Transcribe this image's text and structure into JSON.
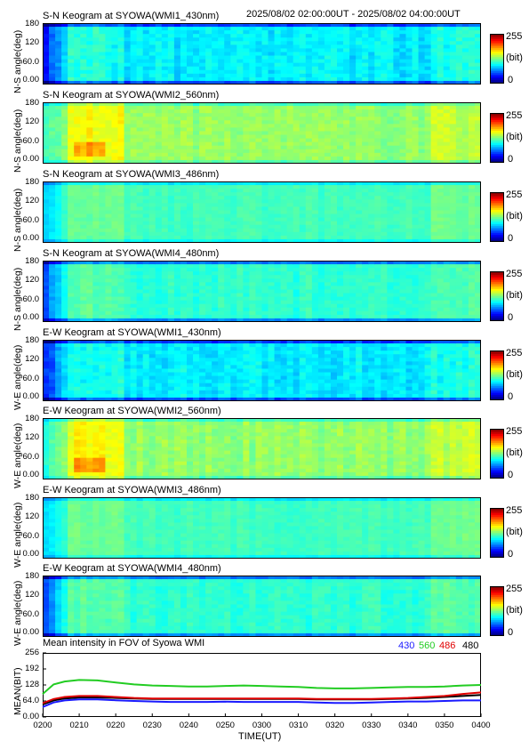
{
  "header": {
    "time_range": "2025/08/02 02:00:00UT - 2025/08/02 04:00:00UT"
  },
  "colorbar": {
    "max_label": "255",
    "unit_label": "(bit)",
    "min_label": "0"
  },
  "colors": {
    "series_430": "#1a1aff",
    "series_560": "#22cc22",
    "series_486": "#e00000",
    "series_480": "#000000"
  },
  "keograms": [
    {
      "title": "S-N Keogram at SYOWA(WMI1_430nm)",
      "ylabel": "N-S angle(deg)",
      "yticks": [
        "180",
        "120",
        "60.0",
        "0.00"
      ],
      "palette": "blue"
    },
    {
      "title": "S-N Keogram at SYOWA(WMI2_560nm)",
      "ylabel": "N-S angle(deg)",
      "yticks": [
        "180",
        "120",
        "60.0",
        "0.00"
      ],
      "palette": "green"
    },
    {
      "title": "S-N Keogram at SYOWA(WMI3_486nm)",
      "ylabel": "N-S angle(deg)",
      "yticks": [
        "180",
        "120",
        "60.0",
        "0.00"
      ],
      "palette": "mid"
    },
    {
      "title": "S-N Keogram at SYOWA(WMI4_480nm)",
      "ylabel": "N-S angle(deg)",
      "yticks": [
        "180",
        "120",
        "60.0",
        "0.00"
      ],
      "palette": "mid2"
    },
    {
      "title": "E-W Keogram at SYOWA(WMI1_430nm)",
      "ylabel": "W-E angle(deg)",
      "yticks": [
        "180",
        "120",
        "60.0",
        "0.00"
      ],
      "palette": "blue"
    },
    {
      "title": "E-W Keogram at SYOWA(WMI2_560nm)",
      "ylabel": "W-E angle(deg)",
      "yticks": [
        "180",
        "120",
        "60.0",
        "0.00"
      ],
      "palette": "green"
    },
    {
      "title": "E-W Keogram at SYOWA(WMI3_486nm)",
      "ylabel": "W-E angle(deg)",
      "yticks": [
        "180",
        "120",
        "60.0",
        "0.00"
      ],
      "palette": "mid"
    },
    {
      "title": "E-W Keogram at SYOWA(WMI4_480nm)",
      "ylabel": "W-E angle(deg)",
      "yticks": [
        "180",
        "120",
        "60.0",
        "0.00"
      ],
      "palette": "mid2"
    }
  ],
  "chart_data": {
    "type": "line",
    "title": "Mean intensity in FOV of Syowa WMI",
    "xlabel": "TIME(UT)",
    "ylabel": "MEAN(BIT)",
    "x_tick_labels": [
      "0200",
      "0210",
      "0220",
      "0230",
      "0240",
      "0250",
      "0300",
      "0310",
      "0320",
      "0330",
      "0340",
      "0350",
      "0400"
    ],
    "y_tick_labels": [
      "0.00",
      "64.0",
      "128",
      "192",
      "256"
    ],
    "xlim": [
      0,
      120
    ],
    "ylim": [
      0,
      256
    ],
    "x": [
      0,
      3,
      6,
      10,
      15,
      20,
      25,
      30,
      35,
      40,
      45,
      50,
      55,
      60,
      65,
      70,
      75,
      80,
      85,
      90,
      95,
      100,
      105,
      110,
      115,
      120
    ],
    "series": [
      {
        "name": "430",
        "color": "#1a1aff",
        "values": [
          40,
          58,
          66,
          70,
          70,
          67,
          64,
          62,
          60,
          60,
          60,
          61,
          60,
          60,
          60,
          60,
          58,
          56,
          56,
          58,
          60,
          62,
          62,
          64,
          66,
          66
        ]
      },
      {
        "name": "560",
        "color": "#22cc22",
        "values": [
          92,
          130,
          142,
          148,
          146,
          138,
          130,
          126,
          124,
          122,
          122,
          124,
          126,
          124,
          122,
          120,
          116,
          114,
          114,
          116,
          118,
          120,
          120,
          122,
          126,
          128
        ]
      },
      {
        "name": "486",
        "color": "#e00000",
        "values": [
          55,
          72,
          80,
          84,
          84,
          80,
          76,
          74,
          74,
          74,
          74,
          74,
          74,
          74,
          74,
          74,
          72,
          72,
          72,
          72,
          74,
          76,
          80,
          84,
          92,
          98
        ]
      },
      {
        "name": "480",
        "color": "#000000",
        "values": [
          50,
          66,
          74,
          78,
          78,
          76,
          74,
          72,
          72,
          72,
          72,
          72,
          72,
          72,
          72,
          72,
          70,
          70,
          70,
          70,
          72,
          74,
          76,
          80,
          84,
          88
        ]
      }
    ]
  }
}
